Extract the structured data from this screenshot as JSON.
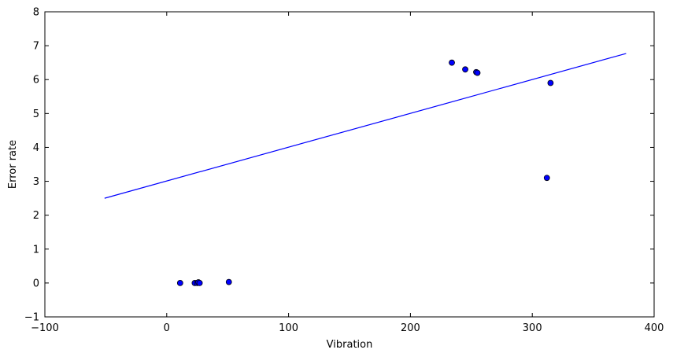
{
  "chart_data": {
    "type": "scatter",
    "title": "",
    "xlabel": "Vibration",
    "ylabel": "Error rate",
    "xlim": [
      -100,
      400
    ],
    "ylim": [
      -1,
      8
    ],
    "xticks": [
      -100,
      0,
      100,
      200,
      300,
      400
    ],
    "yticks": [
      -1,
      0,
      1,
      2,
      3,
      4,
      5,
      6,
      7,
      8
    ],
    "xtick_labels": [
      "−100",
      "0",
      "100",
      "200",
      "300",
      "400"
    ],
    "ytick_labels": [
      "−1",
      "0",
      "1",
      "2",
      "3",
      "4",
      "5",
      "6",
      "7",
      "8"
    ],
    "grid": false,
    "legend": "none",
    "point_color": "#0000ff",
    "line_color": "#0000ff",
    "points": [
      {
        "x": 11,
        "y": 0.0
      },
      {
        "x": 23,
        "y": 0.0
      },
      {
        "x": 25,
        "y": 0.0
      },
      {
        "x": 26,
        "y": 0.02
      },
      {
        "x": 27,
        "y": 0.0
      },
      {
        "x": 51,
        "y": 0.03
      },
      {
        "x": 234,
        "y": 6.5
      },
      {
        "x": 245,
        "y": 6.3
      },
      {
        "x": 254,
        "y": 6.22
      },
      {
        "x": 255,
        "y": 6.2
      },
      {
        "x": 312,
        "y": 3.1
      },
      {
        "x": 315,
        "y": 5.9
      }
    ],
    "fit_line": {
      "x": [
        -51,
        377
      ],
      "y": [
        2.5,
        6.77
      ]
    }
  }
}
